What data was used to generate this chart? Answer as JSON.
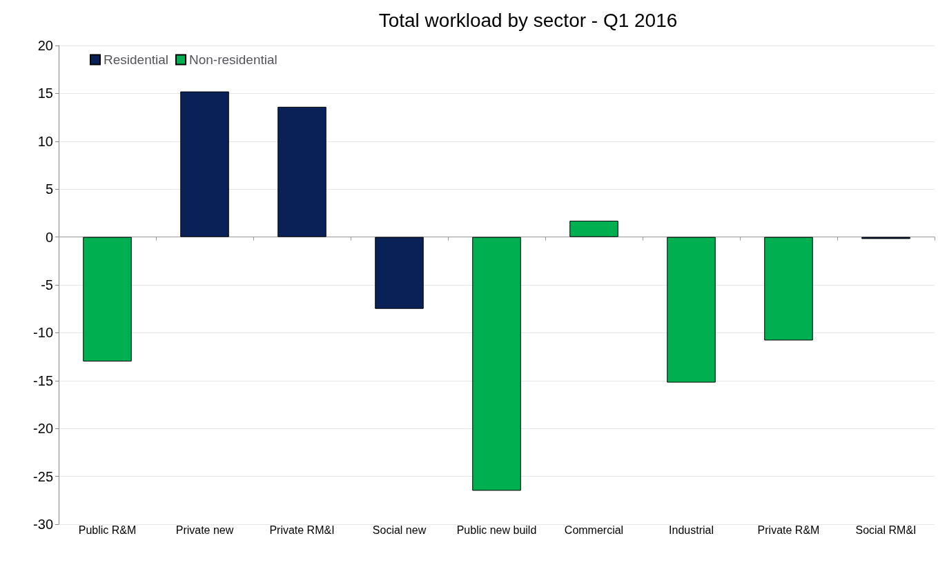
{
  "chart_data": {
    "type": "bar",
    "title": "Total workload by sector - Q1 2016",
    "categories": [
      "Public R&M",
      "Private new",
      "Private RM&I",
      "Social new",
      "Public new build",
      "Commercial",
      "Industrial",
      "Private R&M",
      "Social RM&I"
    ],
    "series": [
      {
        "name": "Residential",
        "color": "#0a2158",
        "values": [
          null,
          15.2,
          13.6,
          -7.5,
          null,
          null,
          null,
          null,
          -0.2
        ]
      },
      {
        "name": "Non-residential",
        "color": "#00b050",
        "values": [
          -13.0,
          null,
          null,
          null,
          -26.5,
          1.7,
          -15.2,
          -10.8,
          null
        ]
      }
    ],
    "ylim": [
      -30,
      20
    ],
    "yticks": [
      -30,
      -25,
      -20,
      -15,
      -10,
      -5,
      0,
      5,
      10,
      15,
      20
    ],
    "grid": "y",
    "legend": "top left"
  }
}
